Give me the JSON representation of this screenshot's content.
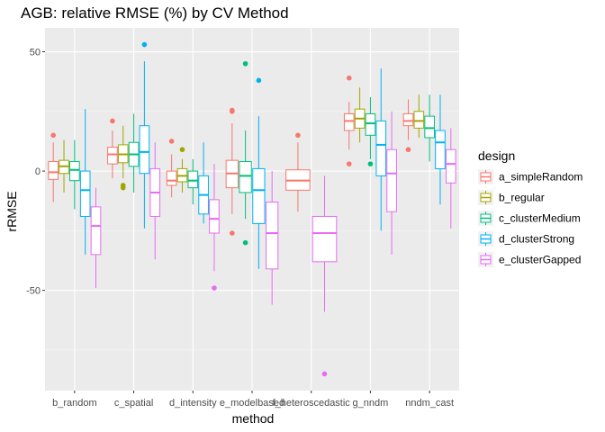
{
  "chart_data": {
    "type": "box",
    "title": "AGB: relative RMSE (%) by CV Method",
    "xlabel": "method",
    "ylabel": "rRMSE",
    "ylim": [
      -92,
      60
    ],
    "yticks": [
      -50,
      0,
      50
    ],
    "grid": true,
    "legend_position": "right",
    "categories": [
      "b_random",
      "c_spatial",
      "d_intensity",
      "e_modelbased",
      "f_heteroscedastic",
      "g_nndm",
      "nndm_cast"
    ],
    "legend": {
      "title": "design",
      "entries": [
        "a_simpleRandom",
        "b_regular",
        "c_clusterMedium",
        "d_clusterStrong",
        "e_clusterGapped"
      ]
    },
    "series": [
      {
        "name": "a_simpleRandom",
        "color": "#F8766D",
        "boxes": [
          {
            "whislo": -13,
            "q1": -3.5,
            "med": -0.5,
            "q3": 4,
            "whishi": 12,
            "outliers": [
              15
            ]
          },
          {
            "whislo": -3,
            "q1": 3,
            "med": 7,
            "q3": 10,
            "whishi": 17,
            "outliers": [
              21
            ]
          },
          {
            "whislo": -11,
            "q1": -6,
            "med": -4,
            "q3": 0,
            "whishi": 7,
            "outliers": [
              12.5
            ]
          },
          {
            "whislo": -18,
            "q1": -7,
            "med": -1,
            "q3": 4.5,
            "whishi": 20,
            "outliers": [
              -26,
              25,
              25.5
            ]
          },
          {
            "whislo": -17,
            "q1": -8,
            "med": -4,
            "q3": 0.5,
            "whishi": 12,
            "outliers": [
              15
            ]
          },
          {
            "whislo": 9,
            "q1": 17,
            "med": 21,
            "q3": 24,
            "whishi": 29,
            "outliers": [
              3,
              39
            ]
          },
          {
            "whislo": 13,
            "q1": 19,
            "med": 21,
            "q3": 24,
            "whishi": 30,
            "outliers": [
              9
            ]
          }
        ]
      },
      {
        "name": "b_regular",
        "color": "#A3A500",
        "boxes": [
          {
            "whislo": -9,
            "q1": -1,
            "med": 2,
            "q3": 4.5,
            "whishi": 13,
            "outliers": []
          },
          {
            "whislo": -3,
            "q1": 3.5,
            "med": 7,
            "q3": 11,
            "whishi": 19,
            "outliers": [
              -6,
              -7
            ]
          },
          {
            "whislo": -9,
            "q1": -4.5,
            "med": -2,
            "q3": 1,
            "whishi": 5,
            "outliers": [
              9
            ]
          },
          {
            "whislo": null,
            "q1": null,
            "med": null,
            "q3": null,
            "whishi": null,
            "outliers": []
          },
          {
            "whislo": null,
            "q1": null,
            "med": null,
            "q3": null,
            "whishi": null,
            "outliers": []
          },
          {
            "whislo": 12,
            "q1": 18,
            "med": 22,
            "q3": 26,
            "whishi": 35,
            "outliers": []
          },
          {
            "whislo": 14,
            "q1": 18,
            "med": 21,
            "q3": 25,
            "whishi": 32,
            "outliers": []
          }
        ]
      },
      {
        "name": "c_clusterMedium",
        "color": "#00BF7D",
        "boxes": [
          {
            "whislo": -16,
            "q1": -4,
            "med": 0.5,
            "q3": 4,
            "whishi": 13,
            "outliers": []
          },
          {
            "whislo": -9,
            "q1": 2,
            "med": 7,
            "q3": 12,
            "whishi": 24,
            "outliers": []
          },
          {
            "whislo": -14,
            "q1": -7,
            "med": -4,
            "q3": 0,
            "whishi": 5,
            "outliers": []
          },
          {
            "whislo": -20,
            "q1": -9,
            "med": -2,
            "q3": 4,
            "whishi": 17,
            "outliers": [
              -30,
              45
            ]
          },
          {
            "whislo": null,
            "q1": null,
            "med": null,
            "q3": null,
            "whishi": null,
            "outliers": []
          },
          {
            "whislo": 5,
            "q1": 15,
            "med": 20,
            "q3": 24,
            "whishi": 31,
            "outliers": [
              3
            ]
          },
          {
            "whislo": 4,
            "q1": 14,
            "med": 18,
            "q3": 23,
            "whishi": 32,
            "outliers": []
          }
        ]
      },
      {
        "name": "d_clusterStrong",
        "color": "#00B0F6",
        "boxes": [
          {
            "whislo": -35,
            "q1": -19,
            "med": -8,
            "q3": 0,
            "whishi": 26,
            "outliers": []
          },
          {
            "whislo": -24,
            "q1": -1,
            "med": 8,
            "q3": 19,
            "whishi": 46,
            "outliers": [
              53
            ]
          },
          {
            "whislo": -22,
            "q1": -18,
            "med": -10,
            "q3": -2,
            "whishi": 12,
            "outliers": []
          },
          {
            "whislo": -41,
            "q1": -22,
            "med": -8,
            "q3": 1,
            "whishi": 23,
            "outliers": [
              38
            ]
          },
          {
            "whislo": null,
            "q1": null,
            "med": null,
            "q3": null,
            "whishi": null,
            "outliers": []
          },
          {
            "whislo": -25,
            "q1": -2,
            "med": 11,
            "q3": 21,
            "whishi": 43,
            "outliers": []
          },
          {
            "whislo": -14,
            "q1": 1,
            "med": 12,
            "q3": 17,
            "whishi": 32,
            "outliers": []
          }
        ]
      },
      {
        "name": "e_clusterGapped",
        "color": "#E76BF3",
        "boxes": [
          {
            "whislo": -49,
            "q1": -35,
            "med": -23,
            "q3": -15,
            "whishi": -7,
            "outliers": []
          },
          {
            "whislo": -37,
            "q1": -19,
            "med": -9,
            "q3": 1,
            "whishi": 12,
            "outliers": []
          },
          {
            "whislo": -42,
            "q1": -26,
            "med": -20,
            "q3": -12,
            "whishi": 3,
            "outliers": [
              -49
            ]
          },
          {
            "whislo": -56,
            "q1": -41,
            "med": -26,
            "q3": -13,
            "whishi": 0,
            "outliers": []
          },
          {
            "whislo": -59,
            "q1": -38,
            "med": -26,
            "q3": -19,
            "whishi": -2,
            "outliers": [
              -85
            ]
          },
          {
            "whislo": -35,
            "q1": -17,
            "med": -1,
            "q3": 9,
            "whishi": 25,
            "outliers": []
          },
          {
            "whislo": -24,
            "q1": -5,
            "med": 3,
            "q3": 9,
            "whishi": 18,
            "outliers": []
          }
        ]
      }
    ]
  }
}
